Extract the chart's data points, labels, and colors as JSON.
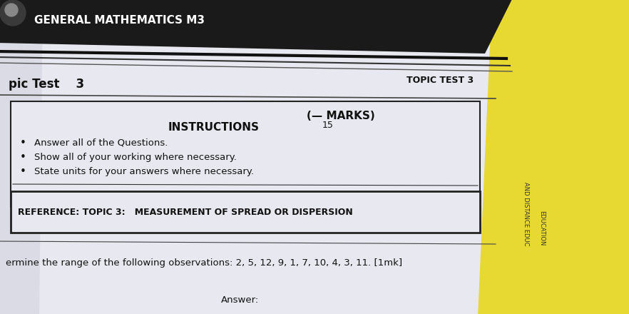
{
  "bg_color": "#6b6358",
  "paper_color": "#dcdce8",
  "paper_light": "#e8e8f0",
  "yellow_color": "#e8d832",
  "header_text": "GENERAL MATHEMATICS M3",
  "subheader_left": "pic Test    3",
  "subheader_right": "TOPIC TEST 3",
  "marks_denom": "15",
  "instructions_title": "INSTRUCTIONS",
  "bullet1": "Answer all of the Questions.",
  "bullet2": "Show all of your working where necessary.",
  "bullet3": "State units for your answers where necessary.",
  "reference_text": "REFERENCE: TOPIC 3:   MEASUREMENT OF SPREAD OR DISPERSION",
  "question_text": "ermine the range of the following observations: 2, 5, 12, 9, 1, 7, 10, 4, 3, 11. [1mk]",
  "answer_label": "Answer:",
  "line_color": "#222222",
  "text_color": "#111111",
  "dark_header_color": "#1a1a1a",
  "logo_color": "#3a3a3a"
}
